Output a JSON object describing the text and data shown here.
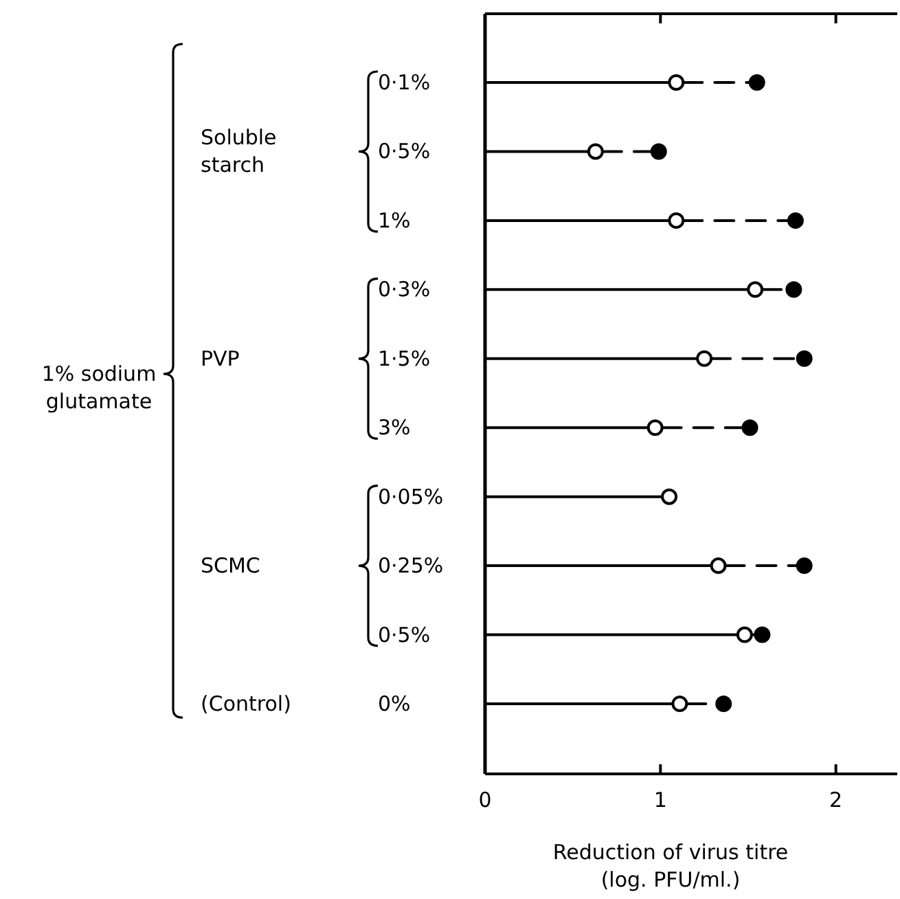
{
  "chart_data": {
    "type": "lollipop",
    "orientation": "horizontal",
    "xlabel": "Reduction of virus titre (log. PFU/ml.)",
    "categories": [
      "0·1%",
      "0·5%",
      "1%",
      "0·3%",
      "1·5%",
      "3%",
      "0·05%",
      "0·25%",
      "0·5%",
      "0%"
    ],
    "annotations": [
      "Soluble starch",
      "PVP",
      "SCMC",
      "(Control)",
      "1% sodium glutamate"
    ],
    "xlim": [
      0,
      2.35
    ],
    "xticks": [
      0,
      1,
      2
    ],
    "grid": false,
    "series": [
      {
        "color": "#000000",
        "marker": "circle",
        "line_style": "solid",
        "values": [
          1.09,
          0.63,
          1.09,
          1.54,
          1.25,
          0.97,
          1.05,
          1.33,
          1.48,
          1.11
        ]
      },
      {
        "type": "scatter",
        "color": "#000000",
        "marker": "circle",
        "line_style": "dashed",
        "values": [
          1.55,
          0.99,
          1.77,
          1.76,
          1.82,
          1.51,
          null,
          1.82,
          1.58,
          1.36
        ]
      }
    ]
  }
}
